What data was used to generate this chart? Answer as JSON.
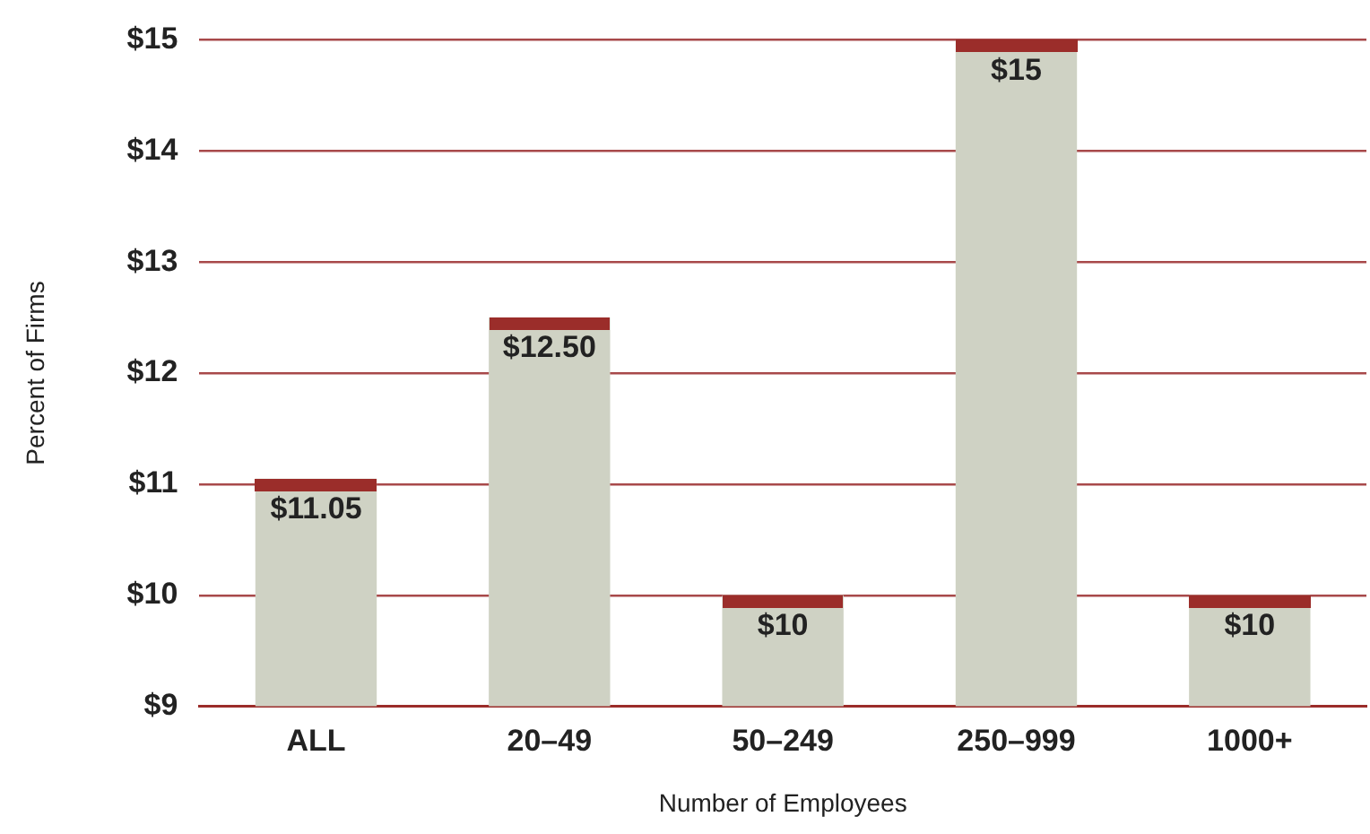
{
  "chart_data": {
    "type": "bar",
    "xlabel": "Number of Employees",
    "ylabel": "Percent of Firms",
    "categories": [
      "ALL",
      "20–49",
      "50–249",
      "250–999",
      "1000+"
    ],
    "values": [
      11.05,
      12.5,
      10,
      15,
      10
    ],
    "value_labels": [
      "$11.05",
      "$12.50",
      "$10",
      "$15",
      "$10"
    ],
    "color": "#cfd2c4",
    "ylim": [
      9,
      15
    ],
    "yticks": [
      {
        "value": 9,
        "label": "$9"
      },
      {
        "value": 10,
        "label": "$10"
      },
      {
        "value": 11,
        "label": "$11"
      },
      {
        "value": 12,
        "label": "$12"
      },
      {
        "value": 13,
        "label": "$13"
      },
      {
        "value": 14,
        "label": "$14"
      },
      {
        "value": 15,
        "label": "$15"
      }
    ],
    "grid": "y"
  }
}
